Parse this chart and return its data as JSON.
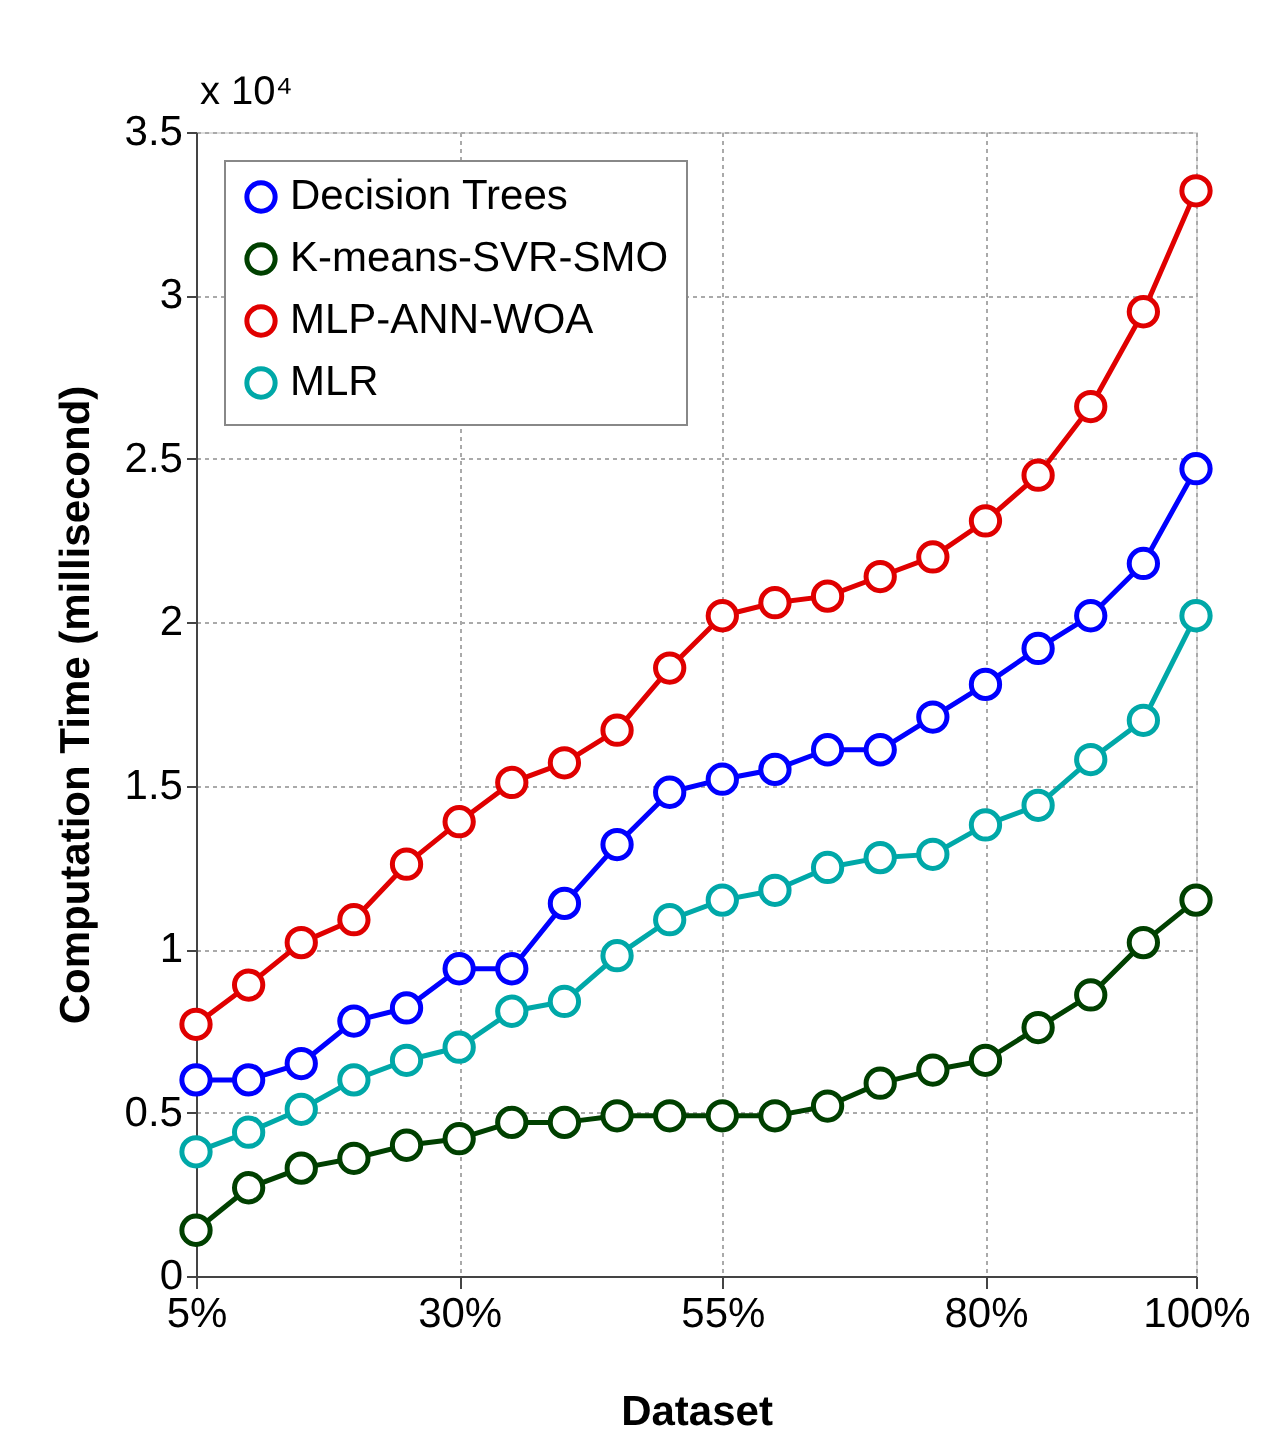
{
  "chart_data": {
    "type": "line",
    "xlabel": "Dataset",
    "ylabel": "Computation Time (millisecond)",
    "annotations": [
      "x 10⁴"
    ],
    "x": [
      5,
      10,
      15,
      20,
      25,
      30,
      35,
      40,
      45,
      50,
      55,
      60,
      65,
      70,
      75,
      80,
      85,
      90,
      95,
      100
    ],
    "series": [
      {
        "name": "Decision Trees",
        "color": "#0000ff",
        "values": [
          0.6,
          0.6,
          0.65,
          0.78,
          0.82,
          0.94,
          0.94,
          1.14,
          1.32,
          1.48,
          1.52,
          1.55,
          1.61,
          1.61,
          1.71,
          1.81,
          1.92,
          2.02,
          2.18,
          2.47
        ]
      },
      {
        "name": "K-means-SVR-SMO",
        "color": "#004000",
        "values": [
          0.14,
          0.27,
          0.33,
          0.36,
          0.4,
          0.42,
          0.47,
          0.47,
          0.49,
          0.49,
          0.49,
          0.49,
          0.52,
          0.59,
          0.63,
          0.66,
          0.76,
          0.86,
          1.02,
          1.15
        ]
      },
      {
        "name": "MLP-ANN-WOA",
        "color": "#e00000",
        "values": [
          0.77,
          0.89,
          1.02,
          1.09,
          1.26,
          1.39,
          1.51,
          1.57,
          1.67,
          1.86,
          2.02,
          2.06,
          2.08,
          2.14,
          2.2,
          2.31,
          2.45,
          2.66,
          2.95,
          3.32
        ]
      },
      {
        "name": "MLR",
        "color": "#00a8a8",
        "values": [
          0.38,
          0.44,
          0.51,
          0.6,
          0.66,
          0.7,
          0.81,
          0.84,
          0.98,
          1.09,
          1.15,
          1.18,
          1.25,
          1.28,
          1.29,
          1.38,
          1.44,
          1.58,
          1.7,
          2.02
        ]
      }
    ],
    "xlim": [
      5,
      100
    ],
    "xticks": [
      {
        "value": 5,
        "label": "5%"
      },
      {
        "value": 30,
        "label": "30%"
      },
      {
        "value": 55,
        "label": "55%"
      },
      {
        "value": 80,
        "label": "80%"
      },
      {
        "value": 100,
        "label": "100%"
      }
    ],
    "ylim": [
      0,
      3.5
    ],
    "yticks": [
      0,
      0.5,
      1,
      1.5,
      2,
      2.5,
      3,
      3.5
    ],
    "grid": true,
    "legend": "top left",
    "marker": "circle",
    "line_style": "solid"
  }
}
